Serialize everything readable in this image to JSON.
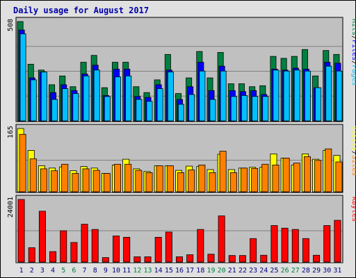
{
  "chart_data": {
    "title": "Daily usage for August 2017",
    "type": "bar",
    "categories": [
      "1",
      "2",
      "3",
      "4",
      "5",
      "6",
      "7",
      "8",
      "9",
      "10",
      "11",
      "12",
      "13",
      "14",
      "15",
      "16",
      "17",
      "18",
      "19",
      "20",
      "21",
      "22",
      "23",
      "24",
      "25",
      "26",
      "27",
      "28",
      "29",
      "30",
      "31"
    ],
    "weekend_days": [
      "5",
      "6",
      "12",
      "13",
      "19",
      "20",
      "26",
      "27"
    ],
    "colors": {
      "background": "#e0e0e0",
      "plot_background": "#c0c0c0",
      "pages": "#00c0ff",
      "files": "#0000ff",
      "hits": "#008040",
      "sites": "#ff8000",
      "visits": "#ffff00",
      "kbytes": "#ff0000",
      "title": "#0000aa",
      "weekend_label": "#008040",
      "weekday_label": "#000080"
    },
    "panels": [
      {
        "name": "hits_files_pages",
        "max_label": "508",
        "ylim": [
          0,
          508
        ],
        "legend": [
          {
            "label": "Pages",
            "color": "#00c0ff"
          },
          {
            "label": "Files",
            "color": "#0000ff"
          },
          {
            "label": "Hits",
            "color": "#008040"
          }
        ],
        "series": [
          {
            "name": "Hits",
            "values": [
              508,
              290,
              260,
              185,
              230,
              175,
              300,
              335,
              170,
              300,
              300,
              175,
              145,
              210,
              340,
              140,
              220,
              355,
              220,
              350,
              190,
              190,
              175,
              180,
              330,
              320,
              330,
              365,
              230,
              360,
              340
            ]
          },
          {
            "name": "Files",
            "values": [
              465,
              220,
              250,
              145,
              185,
              155,
              240,
              285,
              130,
              265,
              265,
              125,
              120,
              185,
              260,
              110,
              175,
              300,
              155,
              280,
              155,
              150,
              155,
              135,
              265,
              260,
              270,
              265,
              170,
              300,
              295
            ]
          },
          {
            "name": "Pages",
            "values": [
              445,
              210,
              250,
              110,
              165,
              140,
              230,
              260,
              125,
              225,
              230,
              110,
              100,
              165,
              250,
              85,
              135,
              255,
              110,
              255,
              125,
              130,
              125,
              125,
              260,
              255,
              260,
              255,
              170,
              280,
              255
            ]
          }
        ]
      },
      {
        "name": "sites_visits",
        "max_label": "165",
        "ylim": [
          0,
          165
        ],
        "legend": [
          {
            "label": "Sites",
            "color": "#ff8000"
          },
          {
            "label": "Visits",
            "color": "#ffff00"
          }
        ],
        "series": [
          {
            "name": "Visits",
            "values": [
              165,
              108,
              68,
              62,
              65,
              55,
              66,
              62,
              48,
              70,
              85,
              60,
              53,
              68,
              68,
              56,
              67,
              66,
              58,
              98,
              58,
              62,
              64,
              64,
              99,
              88,
              70,
              99,
              85,
              108,
              95
            ]
          },
          {
            "name": "Sites",
            "values": [
              150,
              86,
              60,
              55,
              72,
              48,
              60,
              56,
              48,
              72,
              72,
              56,
              50,
              68,
              68,
              50,
              57,
              70,
              50,
              106,
              50,
              62,
              61,
              72,
              70,
              88,
              75,
              92,
              82,
              112,
              78
            ]
          }
        ]
      },
      {
        "name": "kbytes",
        "max_label": "24001",
        "ylim": [
          0,
          24001
        ],
        "legend": [
          {
            "label": "KBytes",
            "color": "#ff0000"
          }
        ],
        "series": [
          {
            "name": "KBytes",
            "values": [
              24001,
              5500,
              19500,
              4000,
              12000,
              7500,
              14500,
              12500,
              1700,
              10000,
              9500,
              2000,
              2000,
              9500,
              11500,
              2000,
              2800,
              12500,
              3000,
              17700,
              2500,
              2500,
              9000,
              2600,
              14000,
              13000,
              12500,
              9000,
              2600,
              14000,
              16000
            ]
          }
        ]
      }
    ]
  }
}
